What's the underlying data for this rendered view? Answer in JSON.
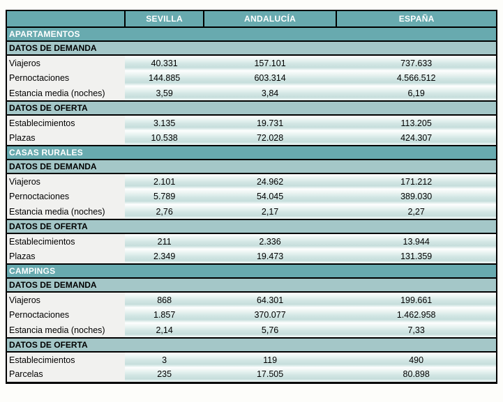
{
  "colors": {
    "band_teal": "#68aaaf",
    "subband_teal": "#a4c7c8",
    "label_bg": "#f1f1ef",
    "value_gradient_teal": "#c6dedc",
    "border": "#000000",
    "band_text": "#ffffff",
    "page_bg": "#fdfdfa"
  },
  "chart_data": {
    "type": "table",
    "columns": [
      "",
      "SEVILLA",
      "ANDALUCÍA",
      "ESPAÑA"
    ],
    "sections": [
      {
        "title": "APARTAMENTOS",
        "demand_title": "DATOS DE DEMANDA",
        "demand_rows": [
          {
            "label": "Viajeros",
            "values": [
              "40.331",
              "157.101",
              "737.633"
            ]
          },
          {
            "label": "Pernoctaciones",
            "values": [
              "144.885",
              "603.314",
              "4.566.512"
            ]
          },
          {
            "label": "Estancia media (noches)",
            "values": [
              "3,59",
              "3,84",
              "6,19"
            ]
          }
        ],
        "offer_title": "DATOS DE OFERTA",
        "offer_rows": [
          {
            "label": "Establecimientos",
            "values": [
              "3.135",
              "19.731",
              "113.205"
            ]
          },
          {
            "label": "Plazas",
            "values": [
              "10.538",
              "72.028",
              "424.307"
            ]
          }
        ]
      },
      {
        "title": "CASAS RURALES",
        "demand_title": "DATOS DE DEMANDA",
        "demand_rows": [
          {
            "label": "Viajeros",
            "values": [
              "2.101",
              "24.962",
              "171.212"
            ]
          },
          {
            "label": "Pernoctaciones",
            "values": [
              "5.789",
              "54.045",
              "389.030"
            ]
          },
          {
            "label": "Estancia media (noches)",
            "values": [
              "2,76",
              "2,17",
              "2,27"
            ]
          }
        ],
        "offer_title": "DATOS DE OFERTA",
        "offer_rows": [
          {
            "label": "Establecimientos",
            "values": [
              "211",
              "2.336",
              "13.944"
            ]
          },
          {
            "label": "Plazas",
            "values": [
              "2.349",
              "19.473",
              "131.359"
            ]
          }
        ]
      },
      {
        "title": "CAMPINGS",
        "demand_title": "DATOS DE DEMANDA",
        "demand_rows": [
          {
            "label": "Viajeros",
            "values": [
              "868",
              "64.301",
              "199.661"
            ]
          },
          {
            "label": "Pernoctaciones",
            "values": [
              "1.857",
              "370.077",
              "1.462.958"
            ]
          },
          {
            "label": "Estancia media (noches)",
            "values": [
              "2,14",
              "5,76",
              "7,33"
            ]
          }
        ],
        "offer_title": "DATOS DE OFERTA",
        "offer_rows": [
          {
            "label": "Establecimientos",
            "values": [
              "3",
              "119",
              "490"
            ]
          },
          {
            "label": "Parcelas",
            "values": [
              "235",
              "17.505",
              "80.898"
            ]
          }
        ]
      }
    ]
  }
}
